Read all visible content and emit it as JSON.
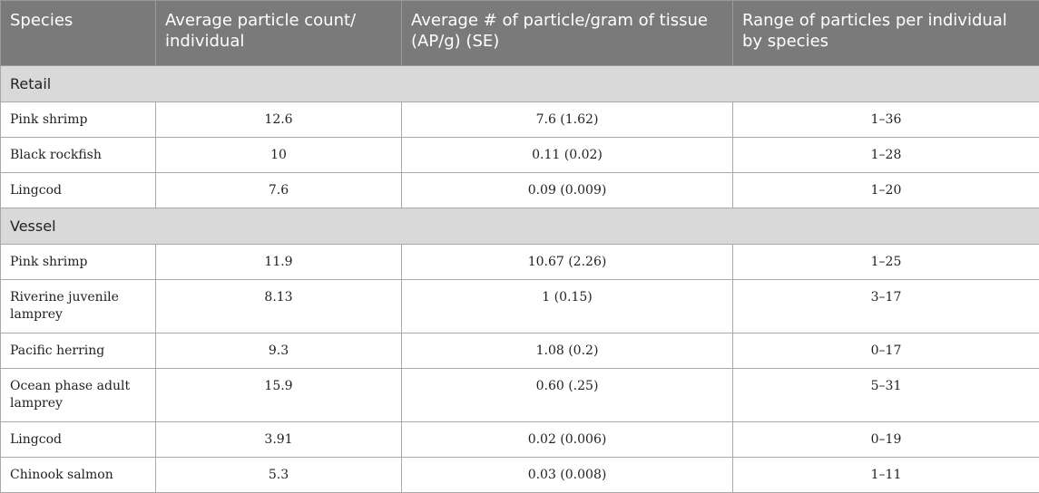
{
  "headers": {
    "species": "Species",
    "avg_count": "Average particle count/ individual",
    "avg_per_gram": "Average # of particle/gram of tissue (AP/g) (SE)",
    "range": "Range of particles per individual by species"
  },
  "sections": [
    {
      "label": "Retail",
      "rows": [
        {
          "species": "Pink shrimp",
          "avg_count": "12.6",
          "avg_per_gram": "7.6 (1.62)",
          "range": "1–36"
        },
        {
          "species": "Black rockfish",
          "avg_count": "10",
          "avg_per_gram": "0.11 (0.02)",
          "range": "1–28"
        },
        {
          "species": "Lingcod",
          "avg_count": "7.6",
          "avg_per_gram": "0.09 (0.009)",
          "range": "1–20"
        }
      ]
    },
    {
      "label": "Vessel",
      "rows": [
        {
          "species": "Pink shrimp",
          "avg_count": "11.9",
          "avg_per_gram": "10.67 (2.26)",
          "range": "1–25"
        },
        {
          "species": "Riverine juvenile lamprey",
          "avg_count": "8.13",
          "avg_per_gram": "1 (0.15)",
          "range": "3–17"
        },
        {
          "species": "Pacific herring",
          "avg_count": "9.3",
          "avg_per_gram": "1.08 (0.2)",
          "range": "0–17"
        },
        {
          "species": "Ocean phase adult lamprey",
          "avg_count": "15.9",
          "avg_per_gram": "0.60 (.25)",
          "range": "5–31"
        },
        {
          "species": "Lingcod",
          "avg_count": "3.91",
          "avg_per_gram": "0.02 (0.006)",
          "range": "0–19"
        },
        {
          "species": "Chinook salmon",
          "avg_count": "5.3",
          "avg_per_gram": "0.03 (0.008)",
          "range": "1–11"
        }
      ]
    }
  ]
}
